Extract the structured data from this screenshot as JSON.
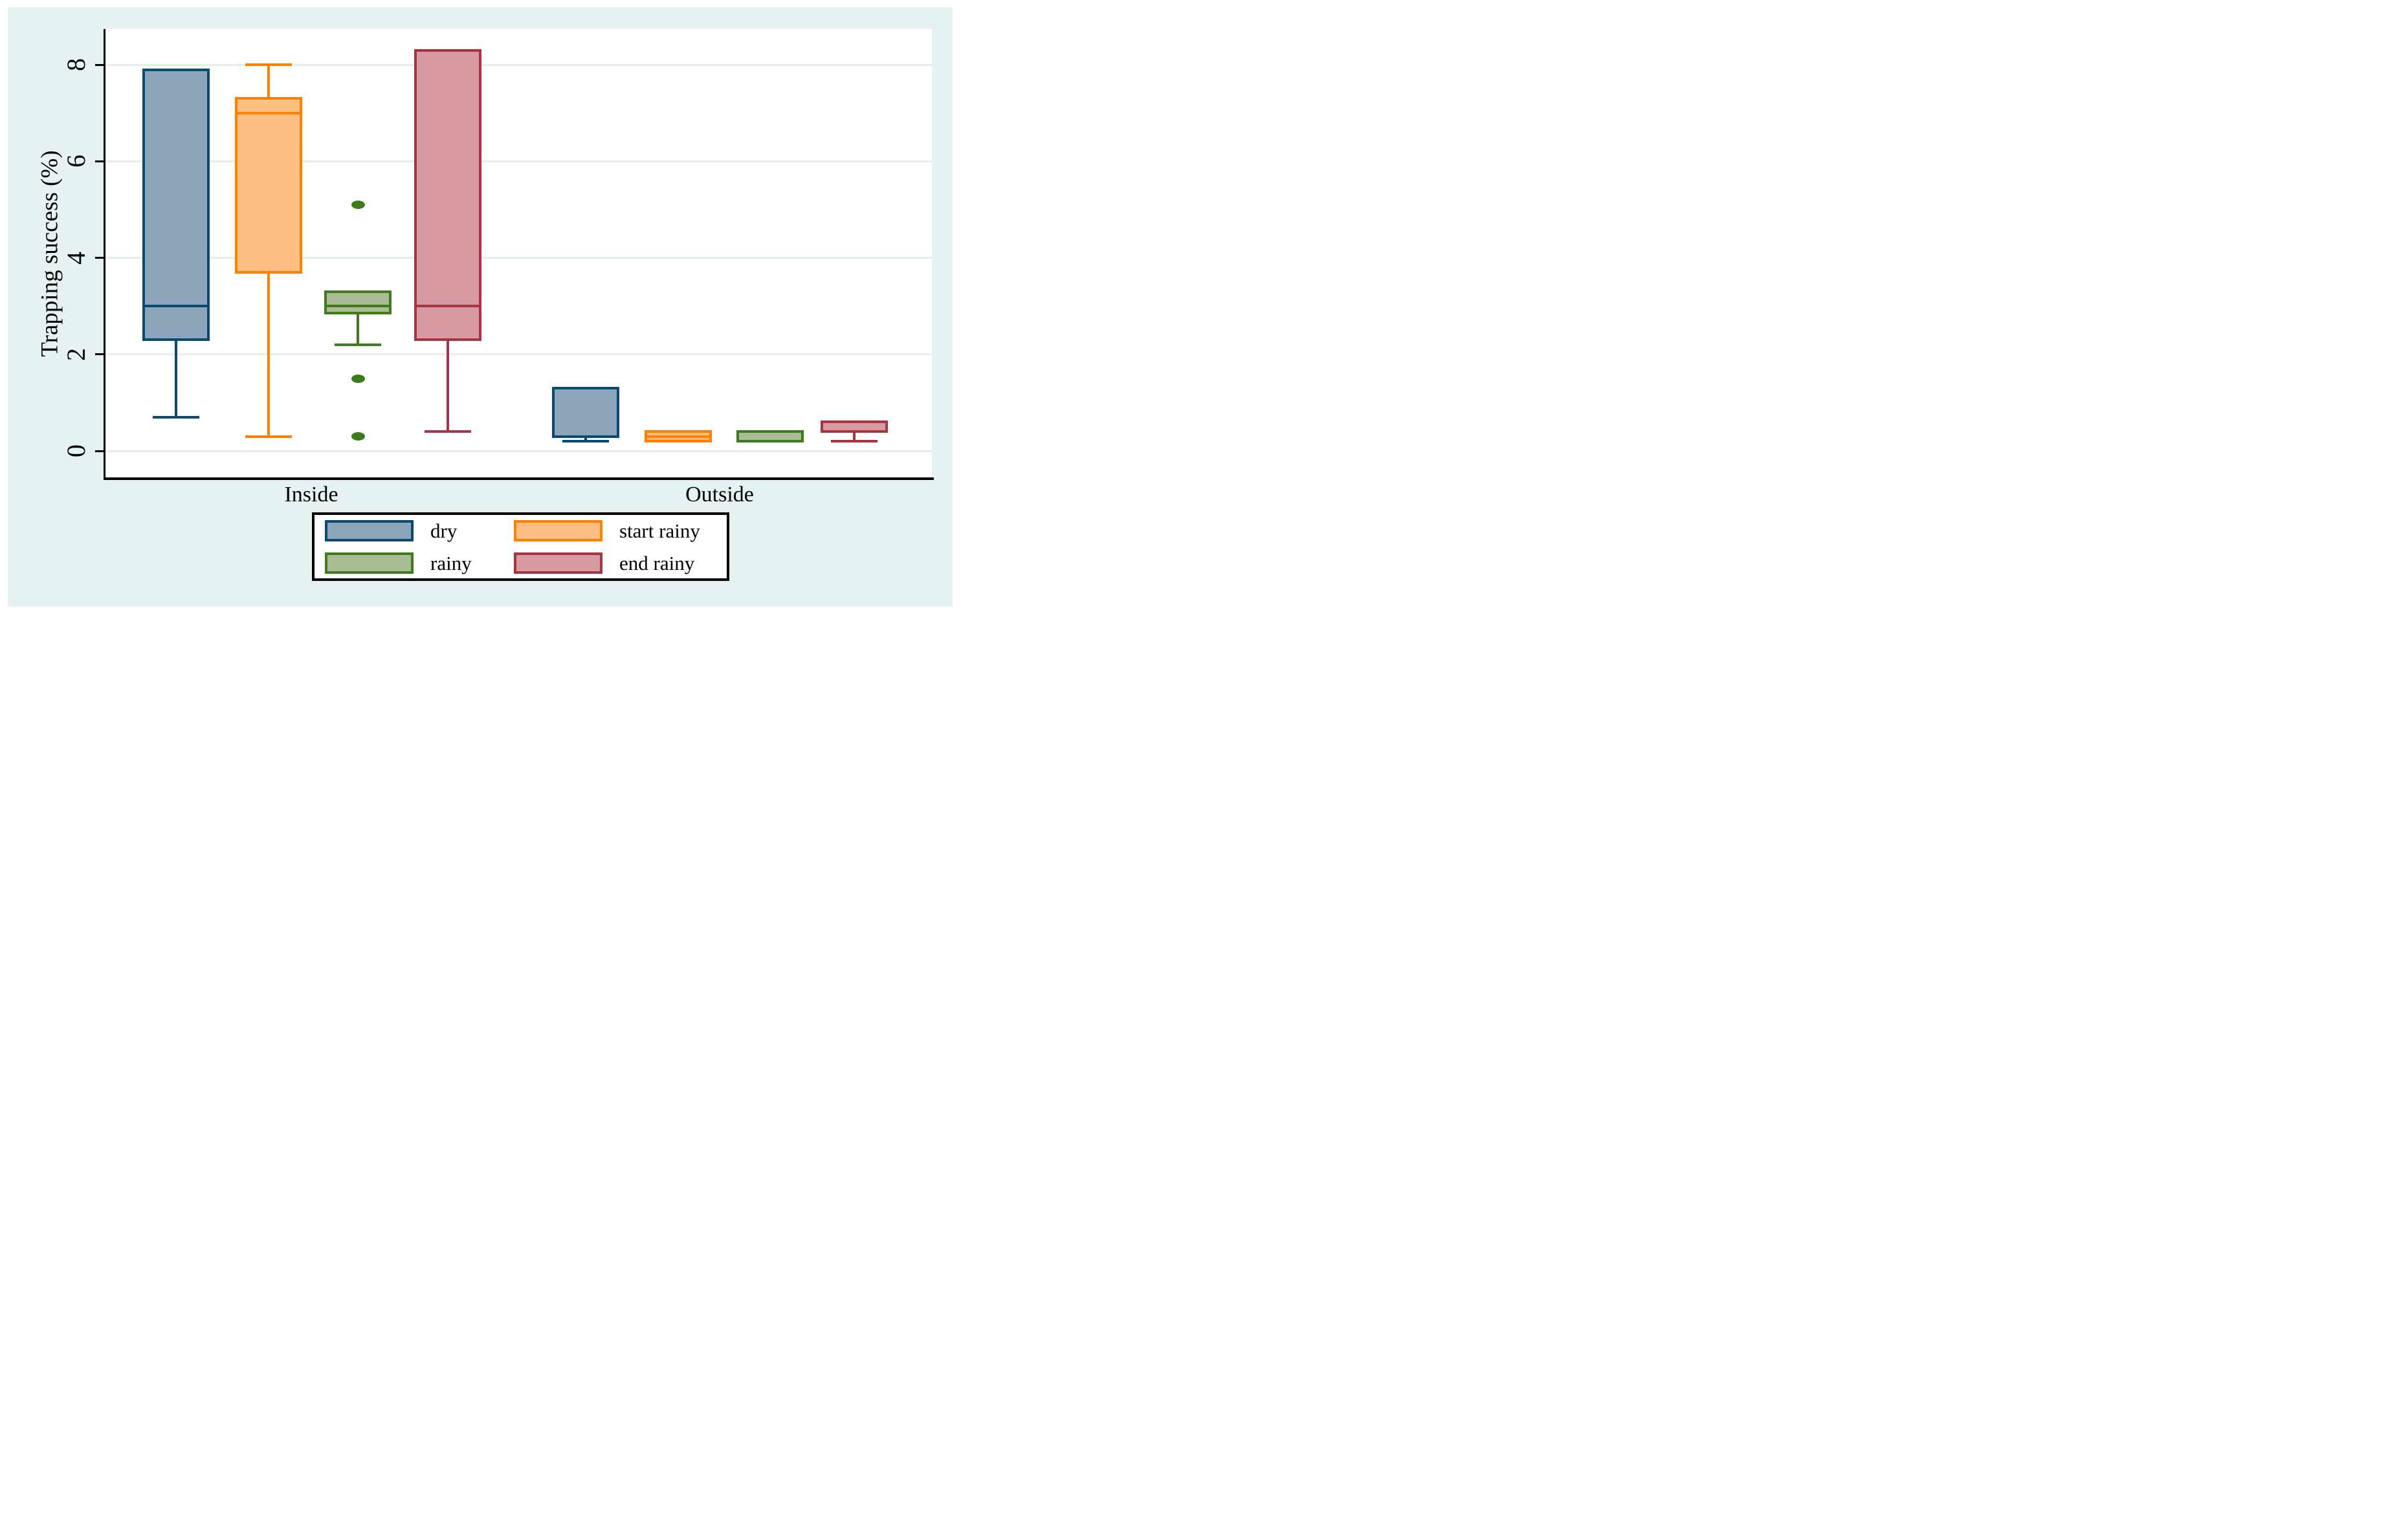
{
  "figure": {
    "background": "#ffffff",
    "canvas_background": "#e6f2f1",
    "plot_background": "#ffffff",
    "gridline_color": "#e3efee",
    "axis_color": "#000000",
    "text_color": "#000000"
  },
  "chart_data": {
    "type": "box",
    "title": "",
    "xlabel": "",
    "ylabel": "Trapping success (%)",
    "ylim": [
      0,
      8.7
    ],
    "yticks": [
      "0",
      "2",
      "4",
      "6",
      "8"
    ],
    "grid": "horizontal pale gridlines at each y tick",
    "legend_position": "bottom center, 2 columns",
    "categories": [
      "Inside",
      "Outside"
    ],
    "series": [
      {
        "name": "dry",
        "border_color": "#0a4a70",
        "fill_color": "#8ba6ba",
        "boxes": [
          {
            "category": "Inside",
            "low": 0.7,
            "q1": 2.3,
            "median": 3.0,
            "q3": 7.9,
            "high": 7.9,
            "outliers": []
          },
          {
            "category": "Outside",
            "low": 0.2,
            "q1": 0.3,
            "median": 0.3,
            "q3": 1.3,
            "high": 1.3,
            "outliers": []
          }
        ]
      },
      {
        "name": "start rainy",
        "border_color": "#fc8002",
        "fill_color": "#fec082",
        "boxes": [
          {
            "category": "Inside",
            "low": 0.3,
            "q1": 3.7,
            "median": 7.0,
            "q3": 7.3,
            "high": 8.0,
            "outliers": []
          },
          {
            "category": "Outside",
            "low": 0.2,
            "q1": 0.2,
            "median": 0.3,
            "q3": 0.4,
            "high": 0.4,
            "outliers": []
          }
        ]
      },
      {
        "name": "rainy",
        "border_color": "#3f7a1f",
        "fill_color": "#a9bb92",
        "boxes": [
          {
            "category": "Inside",
            "low": 2.2,
            "q1": 2.85,
            "median": 3.0,
            "q3": 3.3,
            "high": 3.3,
            "outliers": [
              5.1,
              1.5,
              0.3
            ]
          },
          {
            "category": "Outside",
            "low": 0.2,
            "q1": 0.2,
            "median": 0.4,
            "q3": 0.4,
            "high": 0.4,
            "outliers": []
          }
        ]
      },
      {
        "name": "end rainy",
        "border_color": "#a63441",
        "fill_color": "#d79aa2",
        "boxes": [
          {
            "category": "Inside",
            "low": 0.4,
            "q1": 2.3,
            "median": 3.0,
            "q3": 8.3,
            "high": 8.3,
            "outliers": []
          },
          {
            "category": "Outside",
            "low": 0.2,
            "q1": 0.4,
            "median": 0.4,
            "q3": 0.6,
            "high": 0.6,
            "outliers": []
          }
        ]
      }
    ]
  }
}
